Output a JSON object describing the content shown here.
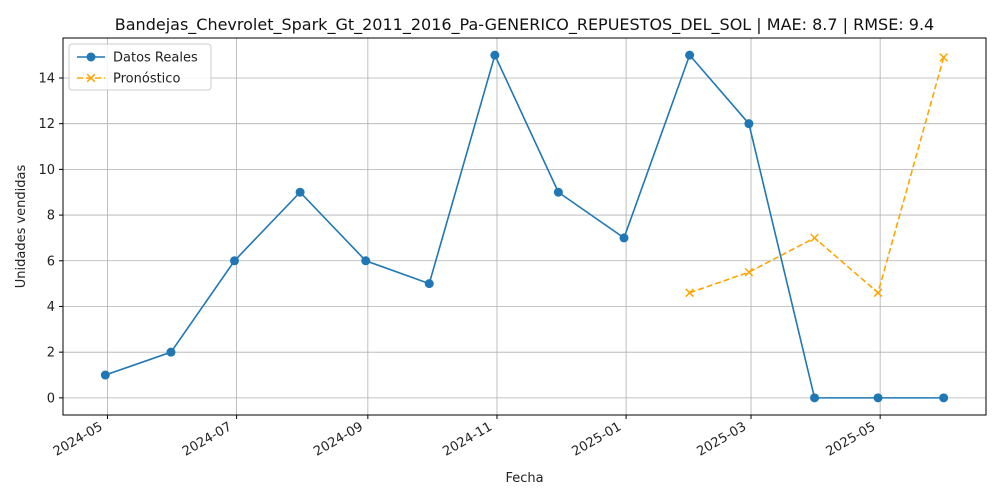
{
  "chart_data": {
    "type": "line",
    "title": "Bandejas_Chevrolet_Spark_Gt_2011_2016_Pa-GENERICO_REPUESTOS_DEL_SOL | MAE: 8.7 | RMSE: 9.4",
    "xlabel": "Fecha",
    "ylabel": "Unidades vendidas",
    "x_ticks": [
      "2024-05",
      "2024-07",
      "2024-09",
      "2024-11",
      "2025-01",
      "2025-03",
      "2025-05"
    ],
    "y_ticks": [
      0,
      2,
      4,
      6,
      8,
      10,
      12,
      14
    ],
    "xlim": [
      "2024-04-10",
      "2025-06-20"
    ],
    "ylim": [
      -0.75,
      15.75
    ],
    "grid": true,
    "legend_position": "top-left",
    "series": [
      {
        "name": "Datos Reales",
        "color": "#1f77b4",
        "line_style": "solid",
        "marker": "circle",
        "x": [
          "2024-04-30",
          "2024-05-31",
          "2024-06-30",
          "2024-07-31",
          "2024-08-31",
          "2024-09-30",
          "2024-10-31",
          "2024-11-30",
          "2024-12-31",
          "2025-01-31",
          "2025-02-28",
          "2025-03-31",
          "2025-04-30",
          "2025-05-31"
        ],
        "y": [
          1,
          2,
          6,
          9,
          6,
          5,
          15,
          9,
          7,
          15,
          12,
          0,
          0,
          0
        ]
      },
      {
        "name": "Pronóstico",
        "color": "#ffa500",
        "line_style": "dashed",
        "marker": "x",
        "x": [
          "2025-01-31",
          "2025-02-28",
          "2025-03-31",
          "2025-04-30",
          "2025-05-31"
        ],
        "y": [
          4.6,
          5.5,
          7.0,
          4.6,
          14.9
        ]
      }
    ]
  }
}
